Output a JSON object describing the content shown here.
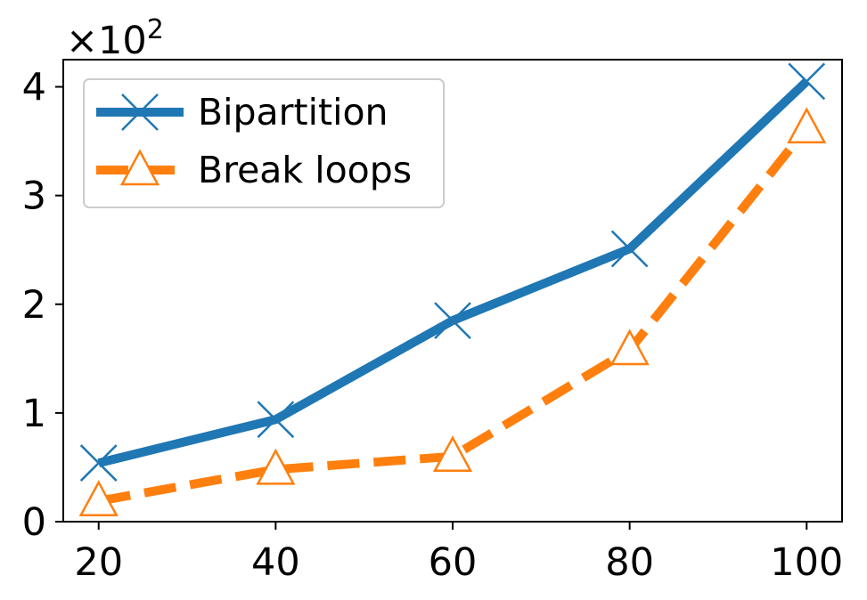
{
  "chart_data": {
    "type": "line",
    "title": "",
    "xlabel": "",
    "ylabel": "",
    "x": [
      20,
      40,
      60,
      80,
      100
    ],
    "xticks": [
      "20",
      "40",
      "60",
      "80",
      "100"
    ],
    "yticks": [
      "0",
      "1",
      "2",
      "3",
      "4"
    ],
    "y_offset_label": {
      "base": "×10",
      "exponent": "2"
    },
    "xlim": [
      16,
      104
    ],
    "ylim": [
      0,
      4.25
    ],
    "grid": false,
    "legend_position": "top-left",
    "series": [
      {
        "name": "Bipartition",
        "values": [
          0.54,
          0.94,
          1.85,
          2.51,
          4.05
        ],
        "color": "#1f77b4",
        "line_style": "solid",
        "marker": "x"
      },
      {
        "name": "Break loops",
        "values": [
          0.19,
          0.48,
          0.6,
          1.58,
          3.62
        ],
        "color": "#ff7f0e",
        "line_style": "dashed",
        "marker": "triangle-hollow"
      }
    ]
  }
}
